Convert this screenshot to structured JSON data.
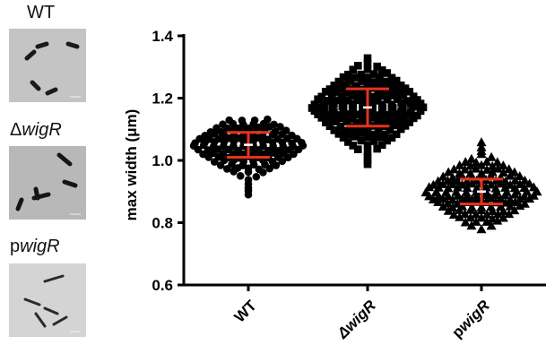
{
  "panels": [
    {
      "label_main": "WT",
      "label_prefix": "",
      "label_italic": "",
      "scale_bar": "1 μm"
    },
    {
      "label_main": "",
      "label_prefix": "Δ",
      "label_italic": "wigR",
      "scale_bar": "1 μm"
    },
    {
      "label_main": "",
      "label_prefix": "p",
      "label_italic": "wigR",
      "scale_bar": "1 μm"
    }
  ],
  "chart_data": {
    "type": "scatter",
    "ylabel": "max width (μm)",
    "xlabel": "",
    "ylim": [
      0.6,
      1.4
    ],
    "yticks": [
      0.6,
      0.8,
      1.0,
      1.2,
      1.4
    ],
    "ytick_labels": [
      "0.6",
      "0.8",
      "1.0",
      "1.2",
      "1.4"
    ],
    "categories": [
      "WT",
      "ΔwigR",
      "pwigR"
    ],
    "category_prefix": [
      "",
      "Δ",
      "p"
    ],
    "category_italic": [
      "",
      "wigR",
      "wigR"
    ],
    "markers": [
      "circle",
      "square",
      "triangle"
    ],
    "colors": {
      "points": "#000000",
      "error_bars": "#e8321c",
      "axis": "#000000"
    },
    "series": [
      {
        "mean": 1.05,
        "sd_low": 1.01,
        "sd_high": 1.09,
        "min": 0.89,
        "max": 1.14
      },
      {
        "mean": 1.17,
        "sd_low": 1.11,
        "sd_high": 1.23,
        "min": 0.99,
        "max": 1.33
      },
      {
        "mean": 0.9,
        "sd_low": 0.86,
        "sd_high": 0.94,
        "min": 0.78,
        "max": 1.06
      }
    ]
  }
}
